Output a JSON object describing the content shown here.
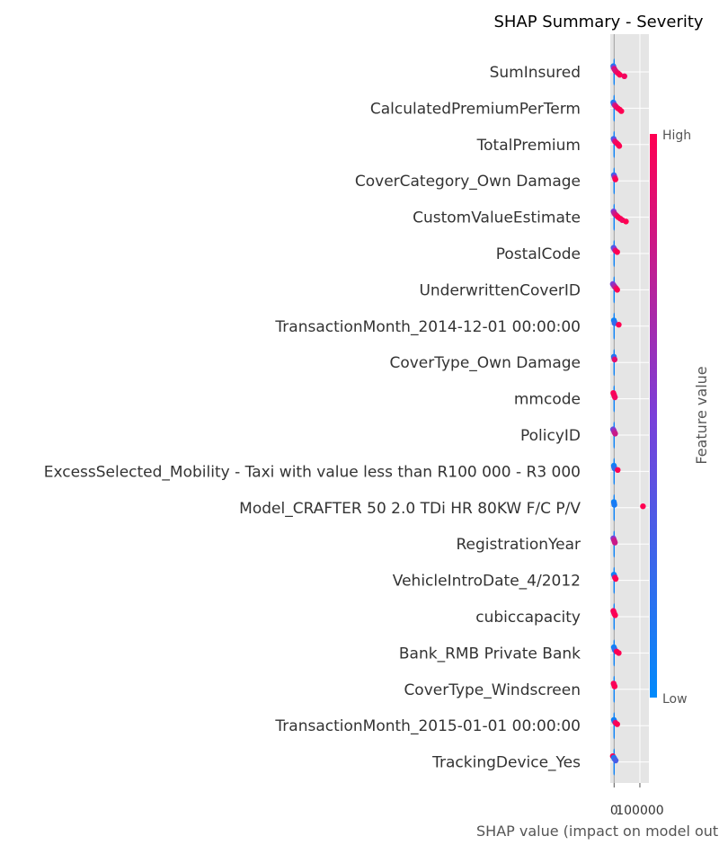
{
  "chart_data": {
    "type": "scatter",
    "title": "SHAP Summary - Severity",
    "xlabel": "SHAP value (impact on model output)",
    "xticks": [
      {
        "value": 0,
        "label": "0"
      },
      {
        "value": 100000,
        "label": "100000"
      }
    ],
    "xlim": [
      -15000,
      135000
    ],
    "grid": true,
    "colorbar": {
      "title": "Feature value",
      "high": "High",
      "low": "Low",
      "colors": [
        "#008afb",
        "#7a3fd9",
        "#ff0052"
      ]
    },
    "features": [
      {
        "name": "SumInsured",
        "points": [
          [
            -3000,
            0.1
          ],
          [
            -2000,
            0.5
          ],
          [
            1000,
            0.9
          ],
          [
            4000,
            0.8
          ],
          [
            9000,
            0.9
          ],
          [
            16000,
            0.95
          ],
          [
            22000,
            1.0
          ],
          [
            40000,
            0.95
          ]
        ]
      },
      {
        "name": "CalculatedPremiumPerTerm",
        "points": [
          [
            -3000,
            0.1
          ],
          [
            -1000,
            0.3
          ],
          [
            3000,
            0.8
          ],
          [
            8000,
            0.9
          ],
          [
            14000,
            0.95
          ],
          [
            22000,
            1.0
          ],
          [
            28000,
            1.0
          ]
        ]
      },
      {
        "name": "TotalPremium",
        "points": [
          [
            -2000,
            0.2
          ],
          [
            0,
            0.5
          ],
          [
            4000,
            0.9
          ],
          [
            10000,
            0.95
          ],
          [
            16000,
            1.0
          ],
          [
            20000,
            1.0
          ]
        ]
      },
      {
        "name": "CoverCategory_Own Damage ",
        "points": [
          [
            -1000,
            0.2
          ],
          [
            1000,
            0.5
          ],
          [
            3000,
            0.8
          ],
          [
            5000,
            1.0
          ]
        ]
      },
      {
        "name": "CustomValueEstimate",
        "points": [
          [
            -2000,
            0.5
          ],
          [
            0,
            0.7
          ],
          [
            4000,
            0.8
          ],
          [
            10000,
            0.9
          ],
          [
            16000,
            1.0
          ],
          [
            24000,
            1.0
          ],
          [
            32000,
            0.95
          ],
          [
            46000,
            1.0
          ]
        ]
      },
      {
        "name": "PostalCode",
        "points": [
          [
            -2000,
            0.3
          ],
          [
            1000,
            0.5
          ],
          [
            5000,
            0.9
          ],
          [
            12000,
            1.0
          ]
        ]
      },
      {
        "name": "UnderwrittenCoverID",
        "points": [
          [
            -5000,
            0.5
          ],
          [
            -1000,
            0.6
          ],
          [
            3000,
            0.7
          ],
          [
            8000,
            0.9
          ],
          [
            12000,
            1.0
          ]
        ]
      },
      {
        "name": "TransactionMonth_2014-12-01 00:00:00",
        "points": [
          [
            -1000,
            0.05
          ],
          [
            1000,
            0.1
          ],
          [
            2000,
            0.2
          ],
          [
            18000,
            1.0
          ]
        ]
      },
      {
        "name": "CoverType_Own Damage",
        "points": [
          [
            -1000,
            0.1
          ],
          [
            0,
            0.3
          ],
          [
            2000,
            0.9
          ]
        ]
      },
      {
        "name": "mmcode",
        "points": [
          [
            -3000,
            1.0
          ],
          [
            -1000,
            0.95
          ],
          [
            1000,
            1.0
          ],
          [
            3000,
            0.95
          ]
        ]
      },
      {
        "name": "PolicyID",
        "points": [
          [
            -4000,
            0.4
          ],
          [
            -1000,
            0.6
          ],
          [
            1000,
            0.7
          ],
          [
            4000,
            0.8
          ]
        ]
      },
      {
        "name": "ExcessSelected_Mobility - Taxi with value less than R100 000 - R3 000",
        "points": [
          [
            -1000,
            0.05
          ],
          [
            0,
            0.1
          ],
          [
            2000,
            0.2
          ],
          [
            14000,
            1.0
          ]
        ]
      },
      {
        "name": "Model_CRAFTER 50 2.0 TDi HR 80KW F/C P/V",
        "points": [
          [
            -1000,
            0.05
          ],
          [
            0,
            0.1
          ],
          [
            1000,
            0.1
          ],
          [
            112000,
            1.0
          ]
        ]
      },
      {
        "name": "RegistrationYear",
        "points": [
          [
            -3000,
            0.5
          ],
          [
            -1000,
            0.7
          ],
          [
            1000,
            0.8
          ],
          [
            3000,
            0.8
          ]
        ]
      },
      {
        "name": "VehicleIntroDate_4/2012",
        "points": [
          [
            -1000,
            0.05
          ],
          [
            1000,
            0.1
          ],
          [
            3000,
            0.9
          ],
          [
            6000,
            1.0
          ]
        ]
      },
      {
        "name": "cubiccapacity",
        "points": [
          [
            -3000,
            0.95
          ],
          [
            -1000,
            1.0
          ],
          [
            1000,
            0.95
          ],
          [
            4000,
            1.0
          ]
        ]
      },
      {
        "name": "Bank_RMB Private Bank",
        "points": [
          [
            -1000,
            0.05
          ],
          [
            1000,
            0.1
          ],
          [
            3000,
            0.2
          ],
          [
            10000,
            1.0
          ],
          [
            18000,
            1.0
          ]
        ]
      },
      {
        "name": "CoverType_Windscreen",
        "points": [
          [
            -2000,
            1.0
          ],
          [
            0,
            0.95
          ],
          [
            2000,
            1.0
          ]
        ]
      },
      {
        "name": "TransactionMonth_2015-01-01 00:00:00",
        "points": [
          [
            -1000,
            0.05
          ],
          [
            1000,
            0.1
          ],
          [
            5000,
            0.9
          ],
          [
            12000,
            1.0
          ]
        ]
      },
      {
        "name": "TrackingDevice_Yes",
        "points": [
          [
            -5000,
            1.0
          ],
          [
            -1000,
            0.1
          ],
          [
            2000,
            0.2
          ],
          [
            6000,
            0.3
          ]
        ]
      }
    ]
  }
}
